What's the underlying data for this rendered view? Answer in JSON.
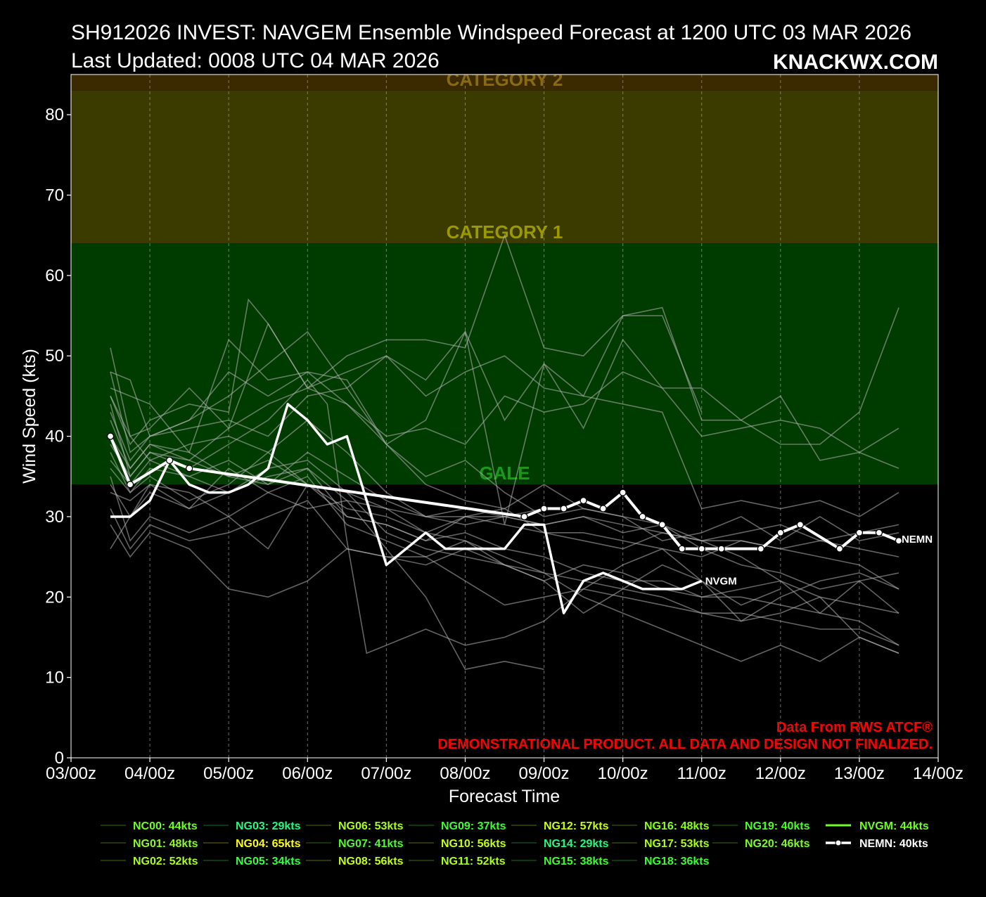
{
  "header": {
    "title_line1": "SH912026 INVEST: NAVGEM Ensemble Windspeed Forecast at 1200 UTC 03 MAR 2026",
    "title_line2": "Last Updated: 0008 UTC 04 MAR 2026",
    "brand": "KNACKWX.COM"
  },
  "credits": {
    "line1": "Data From RWS ATCF®",
    "line2": "DEMONSTRATIONAL PRODUCT. ALL DATA AND DESIGN NOT FINALIZED."
  },
  "colors": {
    "background": "#000000",
    "gale_band": "#003b00",
    "cat1_band": "#3b3b00",
    "cat2_band": "#3b2a00",
    "gale_text": "#1a9a1a",
    "cat1_text": "#9a9a00",
    "cat2_text": "#8a6a10",
    "member_line": "#b4b4b4",
    "credit_text": "#ff0000"
  },
  "chart_data": {
    "type": "line",
    "title": "SH912026 INVEST: NAVGEM Ensemble Windspeed Forecast at 1200 UTC 03 MAR 2026",
    "xlabel": "Forecast Time",
    "ylabel": "Wind Speed (kts)",
    "x_unit": "forecast days from 03/00z",
    "xlim": [
      0,
      11
    ],
    "ylim": [
      0,
      85
    ],
    "x_tick_labels": [
      "03/00z",
      "04/00z",
      "05/00z",
      "06/00z",
      "07/00z",
      "08/00z",
      "09/00z",
      "10/00z",
      "11/00z",
      "12/00z",
      "13/00z",
      "14/00z"
    ],
    "y_ticks": [
      0,
      10,
      20,
      30,
      40,
      50,
      60,
      70,
      80
    ],
    "grid": "vertical dashed",
    "bands": [
      {
        "label": "GALE",
        "from": 34,
        "to": 64
      },
      {
        "label": "CATEGORY 1",
        "from": 64,
        "to": 83
      },
      {
        "label": "CATEGORY 2",
        "from": 83,
        "to": 96
      }
    ],
    "legend": {
      "position": "bottom",
      "entries": [
        {
          "label": "NC00: 44kts",
          "color": "#6dff1e"
        },
        {
          "label": "NG01: 48kts",
          "color": "#88ff1a"
        },
        {
          "label": "NG02: 52kts",
          "color": "#a6ff14"
        },
        {
          "label": "NG03: 29kts",
          "color": "#1eff7a"
        },
        {
          "label": "NG04: 65kts",
          "color": "#ffff00"
        },
        {
          "label": "NG05: 34kts",
          "color": "#34ff44"
        },
        {
          "label": "NG06: 53kts",
          "color": "#a9ff12"
        },
        {
          "label": "NG07: 41kts",
          "color": "#4cff22"
        },
        {
          "label": "NG08: 56kts",
          "color": "#c2ff10"
        },
        {
          "label": "NG09: 37kts",
          "color": "#3aff2e"
        },
        {
          "label": "NG10: 56kts",
          "color": "#c2ff10"
        },
        {
          "label": "NG11: 52kts",
          "color": "#a6ff14"
        },
        {
          "label": "NG12: 57kts",
          "color": "#c8ff0e"
        },
        {
          "label": "NG14: 29kts",
          "color": "#1eff7a"
        },
        {
          "label": "NG15: 38kts",
          "color": "#3cff2a"
        },
        {
          "label": "NG16: 48kts",
          "color": "#88ff1a"
        },
        {
          "label": "NG17: 53kts",
          "color": "#a9ff12"
        },
        {
          "label": "NG18: 36kts",
          "color": "#38ff30"
        },
        {
          "label": "NG19: 40kts",
          "color": "#48ff22"
        },
        {
          "label": "NG20: 46kts",
          "color": "#7aff1c"
        },
        {
          "label": "NVGM: 44kts",
          "color": "#6dff1e"
        },
        {
          "label": "NEMN: 40kts",
          "color": "#ffffff"
        }
      ]
    },
    "series": [
      {
        "name": "NVGM",
        "color": "#ffffff",
        "x": [
          0.5,
          0.75,
          1.0,
          1.25,
          1.5,
          1.75,
          2.0,
          2.25,
          2.5,
          2.75,
          3.0,
          3.25,
          3.5,
          4.0,
          4.5,
          4.75,
          5.0,
          5.25,
          5.5,
          5.75,
          6.0,
          6.25,
          6.5,
          6.75,
          7.0,
          7.25,
          7.5,
          7.75,
          8.0
        ],
        "y": [
          30,
          30,
          32,
          37,
          34,
          33,
          33,
          34,
          36,
          44,
          42,
          39,
          40,
          24,
          28,
          26,
          26,
          26,
          26,
          29,
          29,
          18,
          22,
          23,
          22,
          21,
          21,
          21,
          22
        ]
      },
      {
        "name": "NEMN",
        "color": "#ffffff",
        "x": [
          0.5,
          0.75,
          1.25,
          1.5,
          5.75,
          6.0,
          6.25,
          6.5,
          6.75,
          7.0,
          7.25,
          7.5,
          7.75,
          8.0,
          8.25,
          8.75,
          9.0,
          9.25,
          9.75,
          10.0,
          10.25,
          10.5
        ],
        "y": [
          40,
          34,
          37,
          36,
          30,
          31,
          31,
          32,
          31,
          33,
          30,
          29,
          26,
          26,
          26,
          26,
          28,
          29,
          26,
          28,
          28,
          27
        ]
      },
      {
        "x": [
          0.5,
          0.75,
          1.0,
          1.5,
          2.0,
          2.5,
          3.0,
          3.5,
          4.0,
          4.5,
          5.0,
          5.5,
          6.0,
          6.5,
          7.0,
          7.5,
          8.0,
          8.5,
          9.0,
          9.5,
          10.0,
          10.5
        ],
        "y": [
          48,
          47,
          40,
          42,
          45,
          49,
          53,
          46,
          50,
          47,
          53,
          42,
          49,
          45,
          55,
          56,
          42,
          42,
          45,
          37,
          38,
          41
        ]
      },
      {
        "x": [
          0.5,
          0.75,
          1.0,
          1.5,
          2.0,
          2.5,
          3.0,
          3.5,
          4.0,
          4.5,
          5.0,
          5.5,
          6.0,
          6.5,
          7.0,
          7.5,
          8.0
        ],
        "y": [
          51,
          40,
          41,
          46,
          41,
          54,
          46,
          50,
          52,
          52,
          51,
          65,
          51,
          50,
          55,
          55,
          43
        ]
      },
      {
        "x": [
          0.5,
          1.0,
          1.5,
          2.0,
          2.5,
          3.0,
          3.5,
          4.0,
          4.5,
          5.0,
          5.5,
          6.0,
          6.5,
          7.0,
          7.5,
          8.0,
          8.5,
          9.0,
          9.5,
          10.0,
          10.5
        ],
        "y": [
          46,
          44,
          38,
          52,
          47,
          48,
          47,
          39,
          42,
          53,
          29,
          49,
          41,
          52,
          46,
          46,
          42,
          39,
          39,
          43,
          56
        ]
      },
      {
        "x": [
          0.5,
          0.75,
          1.0,
          1.5,
          2.0,
          2.25,
          2.5,
          3.0,
          3.5,
          4.0,
          4.5,
          5.0,
          5.5,
          6.0,
          6.5,
          7.0,
          7.5,
          8.0,
          8.5,
          9.0,
          9.5,
          10.0,
          10.5
        ],
        "y": [
          45,
          39,
          42,
          44,
          43,
          57,
          54,
          46,
          48,
          50,
          45,
          48,
          50,
          46,
          45,
          44,
          43,
          31,
          32,
          31,
          32,
          30,
          33
        ]
      },
      {
        "x": [
          0.5,
          0.75,
          1.0,
          1.5,
          2.0,
          2.5,
          3.0,
          3.5,
          4.0,
          4.5,
          5.0,
          5.5,
          6.0,
          6.5,
          7.0,
          7.5,
          8.0,
          8.5,
          9.0,
          9.5,
          10.0,
          10.5
        ],
        "y": [
          35,
          27,
          30,
          28,
          30,
          33,
          31,
          32,
          31,
          28,
          30,
          30,
          29,
          30,
          29,
          28,
          27,
          27,
          26,
          25,
          24,
          21
        ]
      },
      {
        "x": [
          0.5,
          0.75,
          1.0,
          1.5,
          2.0,
          2.5,
          3.0,
          3.5,
          4.0,
          4.5,
          5.0,
          5.5,
          6.0,
          6.5,
          7.0,
          7.5,
          8.0,
          8.5,
          9.0,
          9.5,
          10.0,
          10.5
        ],
        "y": [
          29,
          25,
          28,
          26,
          21,
          20,
          22,
          26,
          25,
          25,
          22,
          19,
          20,
          21,
          20,
          19,
          18,
          17,
          18,
          20,
          15,
          13
        ]
      },
      {
        "x": [
          0.5,
          0.75,
          1.0,
          1.5,
          2.0,
          2.5,
          3.0,
          3.5,
          4.0,
          4.5,
          5.0,
          5.5,
          6.0,
          6.5,
          7.0,
          7.5,
          8.0,
          8.5,
          9.0,
          9.5,
          10.0,
          10.5
        ],
        "y": [
          26,
          30,
          34,
          33,
          30,
          26,
          34,
          30,
          29,
          27,
          30,
          31,
          28,
          27,
          26,
          28,
          27,
          25,
          22,
          18,
          22,
          18
        ]
      },
      {
        "x": [
          0.5,
          0.75,
          1.0,
          1.5,
          2.0,
          2.5,
          3.0,
          3.5,
          4.0,
          4.5,
          5.0,
          5.5,
          6.0,
          6.5,
          7.0,
          7.5,
          8.0,
          8.5,
          9.0,
          9.5,
          10.0,
          10.5
        ],
        "y": [
          48,
          38,
          40,
          42,
          48,
          45,
          48,
          44,
          40,
          41,
          39,
          45,
          43,
          44,
          48,
          46,
          40,
          41,
          42,
          41,
          38,
          36
        ]
      },
      {
        "x": [
          0.5,
          0.75,
          1.0,
          1.5,
          2.0,
          2.5,
          3.0,
          3.5,
          4.0,
          4.5,
          5.0,
          5.5,
          6.0,
          6.5,
          7.0,
          7.5,
          8.0,
          8.5,
          9.0,
          9.5,
          10.0,
          10.5
        ],
        "y": [
          31,
          26,
          29,
          27,
          28,
          30,
          32,
          26,
          25,
          24,
          26,
          24,
          22,
          24,
          23,
          21,
          20,
          20,
          19,
          18,
          17,
          14
        ]
      },
      {
        "x": [
          0.5,
          0.75,
          1.0,
          1.5,
          2.0,
          2.5,
          3.0,
          3.5,
          4.0,
          4.5,
          5.0,
          5.5,
          6.0,
          6.5,
          7.0,
          7.5,
          8.0,
          8.5,
          9.0,
          9.5,
          10.0,
          10.5
        ],
        "y": [
          33,
          32,
          34,
          31,
          33,
          35,
          36,
          30,
          29,
          27,
          28,
          26,
          25,
          23,
          22,
          22,
          20,
          21,
          22,
          20,
          19,
          18
        ]
      },
      {
        "x": [
          0.5,
          0.75,
          1.0,
          1.5,
          2.0,
          2.5,
          3.0,
          3.5,
          4.0,
          4.5,
          5.0,
          5.5,
          6.0,
          6.5,
          7.0,
          7.5,
          8.0,
          8.5,
          9.0,
          9.5,
          10.0,
          10.5
        ],
        "y": [
          42,
          36,
          39,
          37,
          41,
          44,
          46,
          44,
          39,
          35,
          37,
          33,
          30,
          31,
          30,
          29,
          26,
          24,
          23,
          21,
          22,
          23
        ]
      },
      {
        "x": [
          0.5,
          0.75,
          1.0,
          1.5,
          2.0,
          2.5,
          3.0,
          3.5,
          4.0,
          4.5,
          5.0,
          5.5,
          6.0,
          6.5,
          7.0,
          7.5,
          8.0,
          8.5,
          9.0,
          9.5,
          10.0,
          10.5
        ],
        "y": [
          36,
          33,
          35,
          32,
          34,
          38,
          34,
          33,
          28,
          26,
          25,
          24,
          22,
          18,
          21,
          24,
          22,
          17,
          20,
          22,
          23,
          21
        ]
      },
      {
        "x": [
          0.5,
          0.75,
          1.0,
          1.5,
          2.0,
          2.5,
          3.0,
          3.25,
          3.5,
          3.75,
          4.0,
          4.5,
          5.0,
          5.5,
          6.0,
          6.25,
          6.5,
          7.0,
          7.5,
          8.0,
          8.5,
          9.0
        ],
        "y": [
          44,
          35,
          38,
          36,
          39,
          42,
          47,
          44,
          27,
          13,
          14,
          16,
          14,
          15,
          17,
          19,
          21,
          24,
          26,
          22,
          19,
          21
        ]
      },
      {
        "x": [
          0.5,
          0.75,
          1.0,
          1.5,
          2.0,
          2.5,
          3.0,
          3.5,
          4.0,
          4.5,
          5.0,
          5.5,
          6.0,
          6.5,
          7.0,
          7.5,
          8.0,
          8.5,
          9.0,
          9.5,
          10.0,
          10.5
        ],
        "y": [
          34,
          30,
          33,
          31,
          36,
          33,
          35,
          29,
          27,
          25,
          27,
          24,
          23,
          22,
          21,
          20,
          18,
          18,
          17,
          16,
          16,
          14
        ]
      },
      {
        "x": [
          0.5,
          0.75,
          1.0,
          1.5,
          2.0,
          2.5,
          3.0,
          3.5,
          4.0,
          4.5,
          5.0,
          5.5,
          6.0
        ],
        "y": [
          45,
          40,
          37,
          39,
          40,
          38,
          42,
          38,
          33,
          30,
          29,
          30,
          31
        ]
      },
      {
        "x": [
          0.5,
          0.75,
          1.0,
          1.5,
          2.0,
          2.5,
          3.0,
          3.5,
          4.0,
          4.5,
          5.0,
          5.5,
          6.0
        ],
        "y": [
          38,
          33,
          36,
          35,
          37,
          34,
          36,
          32,
          26,
          20,
          11,
          12,
          11
        ]
      },
      {
        "x": [
          0.5,
          0.75,
          1.0,
          1.5,
          2.0,
          2.5,
          3.0,
          3.5,
          4.0,
          4.5,
          5.0,
          5.5,
          6.0,
          6.5,
          7.0,
          7.5,
          8.0,
          8.5,
          9.0,
          9.5,
          10.0,
          10.5
        ],
        "y": [
          40,
          36,
          39,
          38,
          35,
          37,
          34,
          31,
          30,
          28,
          27,
          25,
          23,
          20,
          18,
          16,
          14,
          12,
          14,
          12,
          15,
          13
        ]
      },
      {
        "x": [
          0.5,
          0.75,
          1.0,
          1.5,
          2.0,
          2.5,
          3.0,
          3.5,
          4.0,
          4.5,
          5.0,
          5.5,
          6.0,
          6.5,
          7.0,
          7.5,
          8.0,
          8.5,
          9.0,
          9.5,
          10.0,
          10.5
        ],
        "y": [
          37,
          34,
          37,
          35,
          33,
          36,
          37,
          33,
          31,
          30,
          30,
          29,
          28,
          28,
          27,
          26,
          25,
          27,
          26,
          27,
          26,
          25
        ]
      },
      {
        "x": [
          0.5,
          0.75,
          1.0,
          1.5,
          2.0,
          2.5,
          3.0,
          3.5,
          4.0,
          4.5,
          5.0,
          5.5,
          6.0,
          6.5,
          7.0,
          7.5,
          8.0,
          8.5,
          9.0,
          9.5,
          10.0,
          10.5
        ],
        "y": [
          39,
          35,
          38,
          37,
          35,
          34,
          38,
          35,
          32,
          30,
          31,
          30,
          29,
          30,
          28,
          29,
          27,
          28,
          29,
          27,
          28,
          29
        ]
      },
      {
        "x": [
          0.5,
          0.75,
          1.0,
          1.5,
          2.0,
          2.5,
          3.0,
          3.5,
          4.0,
          4.5,
          5.0,
          5.5,
          6.0,
          6.5,
          7.0,
          7.5,
          8.0,
          8.5,
          9.0,
          9.5,
          10.0,
          10.5
        ],
        "y": [
          43,
          37,
          40,
          41,
          42,
          40,
          45,
          46,
          39,
          34,
          32,
          31,
          34,
          31,
          30,
          27,
          28,
          30,
          27,
          30,
          27,
          28
        ]
      }
    ],
    "end_labels": [
      "NVGM",
      "NEMN"
    ]
  }
}
